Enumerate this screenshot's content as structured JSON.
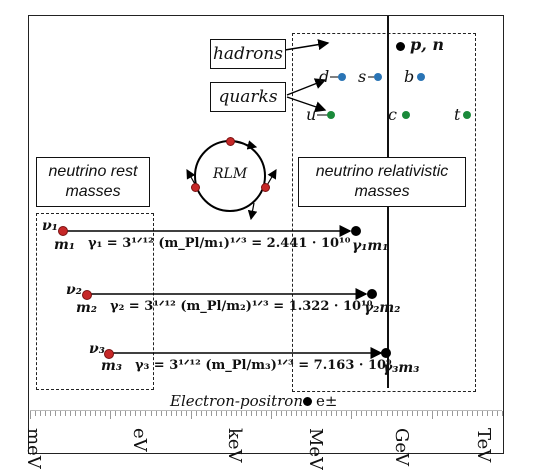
{
  "boxes": {
    "hadrons": "hadrons",
    "quarks": "quarks",
    "rest_masses": "neutrino rest masses",
    "relativistic_masses": "neutrino relativistic masses"
  },
  "rlm_label": "RLM",
  "particles": {
    "proton_neutron": "p, n",
    "down": "d",
    "strange": "s",
    "bottom": "b",
    "up": "u",
    "charm": "c",
    "top": "t"
  },
  "neutrinos": [
    {
      "nu": "ν₁",
      "m": "m₁",
      "gamma_expr": "γ₁ = 3¹ᐟ¹² (m_Pl/m₁)¹ᐟ³ = 2.441 · 10¹⁰",
      "product": "γ₁m₁"
    },
    {
      "nu": "ν₂",
      "m": "m₂",
      "gamma_expr": "γ₂ = 3¹ᐟ¹² (m_Pl/m₂)¹ᐟ³ = 1.322 · 10¹⁰",
      "product": "γ₂m₂"
    },
    {
      "nu": "ν₃",
      "m": "m₃",
      "gamma_expr": "γ₃ = 3¹ᐟ¹² (m_Pl/m₃)¹ᐟ³ = 7.163 · 10⁹",
      "product": "γ₃m₃"
    }
  ],
  "electron_positron": "Electron-positron",
  "electron_symbol": "e±",
  "axis_units": [
    "meV",
    "eV",
    "keV",
    "MeV",
    "GeV",
    "TeV"
  ],
  "colors": {
    "quark_blue": "#2a74b5",
    "quark_green": "#1a8a3a",
    "neutrino_red": "#c62828"
  }
}
